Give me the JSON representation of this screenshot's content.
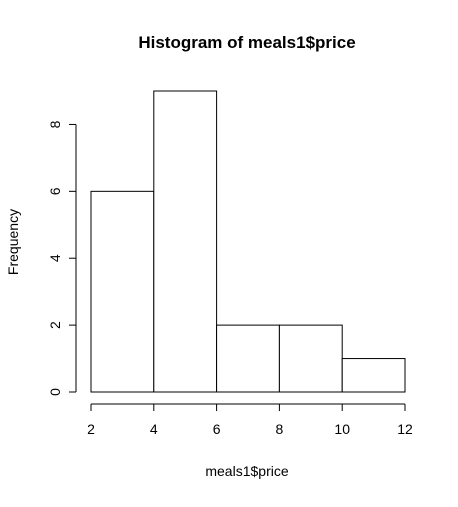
{
  "chart_data": {
    "type": "bar",
    "title": "Histogram of meals1$price",
    "xlabel": "meals1$price",
    "ylabel": "Frequency",
    "bins": [
      {
        "from": 2,
        "to": 4,
        "count": 6
      },
      {
        "from": 4,
        "to": 6,
        "count": 9
      },
      {
        "from": 6,
        "to": 8,
        "count": 2
      },
      {
        "from": 8,
        "to": 10,
        "count": 2
      },
      {
        "from": 10,
        "to": 12,
        "count": 1
      }
    ],
    "xlim": [
      2,
      12
    ],
    "ylim": [
      0,
      9
    ],
    "xticks": [
      2,
      4,
      6,
      8,
      10,
      12
    ],
    "yticks": [
      0,
      2,
      4,
      6,
      8
    ],
    "grid": false,
    "bar_fill": "#ffffff",
    "bar_stroke": "#000000"
  }
}
